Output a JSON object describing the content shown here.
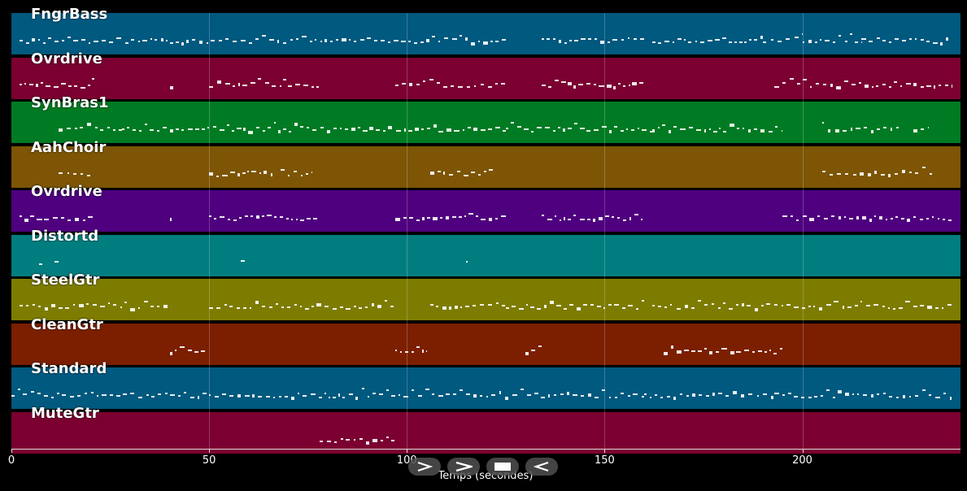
{
  "tracks": [
    {
      "name": "FngrBass",
      "color": "#00597f"
    },
    {
      "name": "Ovrdrive",
      "color": "#7b0031"
    },
    {
      "name": "SynBras1",
      "color": "#007b23"
    },
    {
      "name": "AahChoir",
      "color": "#7d5505"
    },
    {
      "name": "Ovrdrive",
      "color": "#4f007f"
    },
    {
      "name": "Distortd",
      "color": "#007d7f"
    },
    {
      "name": "SteelGtr",
      "color": "#7d7c00"
    },
    {
      "name": "CleanGtr",
      "color": "#7b1f00"
    },
    {
      "name": "Standard",
      "color": "#00597f"
    },
    {
      "name": "MuteGtr",
      "color": "#7b0031"
    }
  ],
  "note_segments": [
    [
      [
        2,
        125,
        0.5
      ],
      [
        134,
        160,
        0.5
      ],
      [
        162,
        190,
        0.6
      ],
      [
        190,
        200,
        0.4
      ],
      [
        200,
        215,
        0.5
      ],
      [
        215,
        237,
        0.5
      ]
    ],
    [
      [
        2,
        21,
        0.6
      ],
      [
        40,
        41,
        0.4
      ],
      [
        50,
        78,
        0.6
      ],
      [
        97,
        125,
        0.4
      ],
      [
        134,
        160,
        0.6
      ],
      [
        193,
        238,
        0.5
      ]
    ],
    [
      [
        12,
        28,
        0.5
      ],
      [
        28,
        125,
        0.6
      ],
      [
        125,
        162,
        0.6
      ],
      [
        162,
        170,
        0.5
      ],
      [
        170,
        180,
        0.6
      ],
      [
        180,
        195,
        0.5
      ],
      [
        205,
        225,
        0.4
      ],
      [
        228,
        232,
        0.4
      ]
    ],
    [
      [
        12,
        20,
        0.4
      ],
      [
        50,
        66,
        0.6
      ],
      [
        68,
        76,
        0.4
      ],
      [
        106,
        122,
        0.5
      ],
      [
        205,
        233,
        0.4
      ]
    ],
    [
      [
        2,
        21,
        0.6
      ],
      [
        40,
        41,
        0.4
      ],
      [
        50,
        78,
        0.6
      ],
      [
        97,
        125,
        0.6
      ],
      [
        134,
        160,
        0.6
      ],
      [
        195,
        238,
        0.5
      ]
    ],
    [
      [
        7,
        8,
        0.4
      ],
      [
        11,
        12,
        0.4
      ],
      [
        58,
        59,
        0.7
      ],
      [
        115,
        116,
        0.4
      ]
    ],
    [
      [
        2,
        40,
        0.5
      ],
      [
        50,
        97,
        0.5
      ],
      [
        106,
        125,
        0.5
      ],
      [
        125,
        160,
        0.6
      ],
      [
        162,
        180,
        0.4
      ],
      [
        180,
        238,
        0.5
      ]
    ],
    [
      [
        40,
        49,
        0.6
      ],
      [
        97,
        105,
        0.6
      ],
      [
        130,
        134,
        0.6
      ],
      [
        165,
        195,
        0.6
      ]
    ],
    [
      [
        0,
        160,
        0.5
      ],
      [
        160,
        193,
        0.4
      ],
      [
        193,
        238,
        0.5
      ]
    ],
    [
      [
        78,
        97,
        0.5
      ]
    ]
  ],
  "x_axis": {
    "label": "Temps (secondes)",
    "ticks": [
      "0",
      "50",
      "100",
      "150",
      "200"
    ],
    "tick_values": [
      0,
      50,
      100,
      150,
      200
    ],
    "max": 240
  },
  "controls": [
    {
      "name": "play-button",
      "icon": "play-icon"
    },
    {
      "name": "forward-button",
      "icon": "forward-icon"
    },
    {
      "name": "stop-button",
      "icon": "stop-icon"
    },
    {
      "name": "rewind-button",
      "icon": "rewind-icon"
    }
  ]
}
